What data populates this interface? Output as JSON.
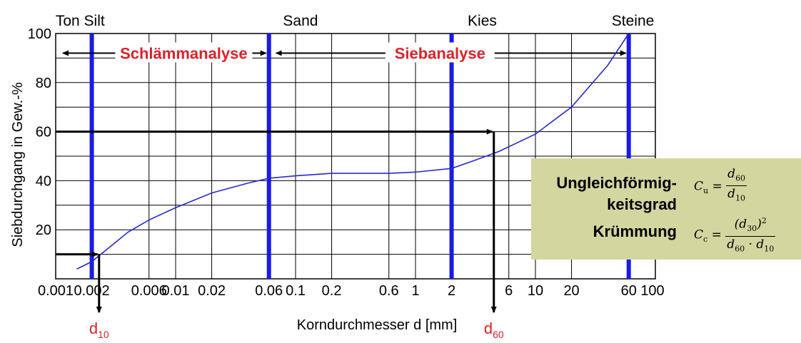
{
  "chart_data": {
    "type": "line",
    "title": "",
    "xlabel": "Korndurchmesser d [mm]",
    "ylabel": "Siebdurchgang in Gew.-%",
    "x_scale": "log",
    "xlim": [
      0.001,
      100
    ],
    "ylim": [
      0,
      100
    ],
    "grid": true,
    "x_ticks": [
      0.001,
      0.002,
      0.006,
      0.01,
      0.02,
      0.06,
      0.1,
      0.2,
      0.6,
      1,
      2,
      6,
      10,
      20,
      60,
      100
    ],
    "x_tick_labels": [
      "0.001",
      "0.002",
      "0.006",
      "0.01",
      "0.02",
      "0.06",
      "0.1",
      "0.2",
      "0.6",
      "1",
      "2",
      "6",
      "10",
      "20",
      "60",
      "100"
    ],
    "y_ticks": [
      20,
      40,
      60,
      80,
      100
    ],
    "y_tick_labels": [
      "20",
      "40",
      "60",
      "80",
      "100"
    ],
    "zone_boundaries": [
      0.002,
      0.06,
      2,
      60
    ],
    "zone_labels": [
      {
        "text": "Ton Silt",
        "x": 0.0016
      },
      {
        "text": "Sand",
        "x": 0.11
      },
      {
        "text": "Kies",
        "x": 3.6
      },
      {
        "text": "Steine",
        "x": 65
      }
    ],
    "ranges": [
      {
        "label": "Schlämmanalyse",
        "from": 0.001,
        "to": 0.06,
        "y": 92
      },
      {
        "label": "Siebanalyse",
        "from": 0.06,
        "to": 60,
        "y": 92
      }
    ],
    "markers": [
      {
        "label": "d",
        "sub": "10",
        "x": 0.0023,
        "y": 10
      },
      {
        "label": "d",
        "sub": "60",
        "x": 4.5,
        "y": 60
      }
    ],
    "series": [
      {
        "color": "#2828d8",
        "points": [
          [
            0.0015,
            4
          ],
          [
            0.002,
            7
          ],
          [
            0.003,
            14
          ],
          [
            0.004,
            19
          ],
          [
            0.006,
            24
          ],
          [
            0.01,
            29
          ],
          [
            0.02,
            35
          ],
          [
            0.04,
            39
          ],
          [
            0.06,
            41
          ],
          [
            0.1,
            42
          ],
          [
            0.2,
            43
          ],
          [
            0.6,
            43
          ],
          [
            1,
            43.5
          ],
          [
            2,
            45
          ],
          [
            3,
            48
          ],
          [
            5,
            52
          ],
          [
            10,
            59
          ],
          [
            20,
            70
          ],
          [
            40,
            87
          ],
          [
            60,
            100
          ]
        ]
      }
    ]
  },
  "info_box": {
    "label_uniformity_line1": "Ungleichförmig-",
    "label_uniformity_line2": "keitsgrad",
    "label_curvature": "Krümmung",
    "cu_symbol": "C",
    "cu_sub": "u",
    "cu_num": "d",
    "cu_num_sub": "60",
    "cu_den": "d",
    "cu_den_sub": "10",
    "cc_symbol": "C",
    "cc_sub": "c",
    "cc_num": "(d",
    "cc_num_sub": "30",
    "cc_num_close": ")",
    "cc_num_sup": "2",
    "cc_den_a": "d",
    "cc_den_a_sub": "60",
    "cc_den_dot": " · ",
    "cc_den_b": "d",
    "cc_den_b_sub": "10"
  },
  "colors": {
    "zone_line": "#1a1ae6",
    "curve": "#2828d8",
    "marker_text": "#d9232a",
    "info_bg": "#d4d6a0"
  }
}
